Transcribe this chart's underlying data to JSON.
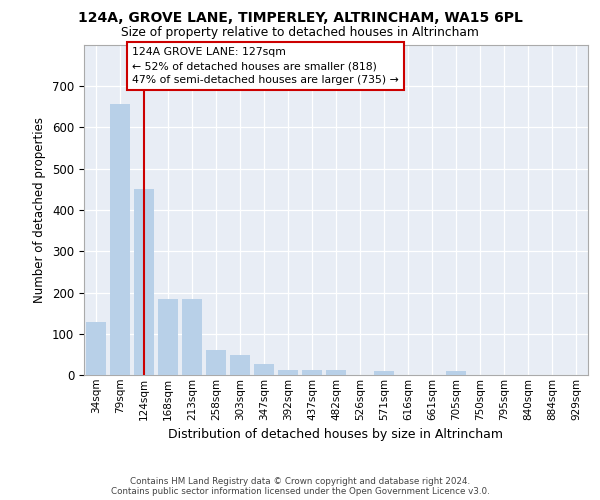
{
  "title1": "124A, GROVE LANE, TIMPERLEY, ALTRINCHAM, WA15 6PL",
  "title2": "Size of property relative to detached houses in Altrincham",
  "xlabel": "Distribution of detached houses by size in Altrincham",
  "ylabel": "Number of detached properties",
  "categories": [
    "34sqm",
    "79sqm",
    "124sqm",
    "168sqm",
    "213sqm",
    "258sqm",
    "303sqm",
    "347sqm",
    "392sqm",
    "437sqm",
    "482sqm",
    "526sqm",
    "571sqm",
    "616sqm",
    "661sqm",
    "705sqm",
    "750sqm",
    "795sqm",
    "840sqm",
    "884sqm",
    "929sqm"
  ],
  "values": [
    128,
    658,
    452,
    184,
    184,
    60,
    48,
    27,
    13,
    13,
    11,
    0,
    9,
    0,
    0,
    9,
    0,
    0,
    0,
    0,
    0
  ],
  "bar_color": "#b8d0e8",
  "highlight_bar_index": 2,
  "highlight_line_color": "#cc0000",
  "annotation_line1": "124A GROVE LANE: 127sqm",
  "annotation_line2": "← 52% of detached houses are smaller (818)",
  "annotation_line3": "47% of semi-detached houses are larger (735) →",
  "annotation_box_facecolor": "#ffffff",
  "annotation_box_edgecolor": "#cc0000",
  "ylim": [
    0,
    800
  ],
  "yticks": [
    0,
    100,
    200,
    300,
    400,
    500,
    600,
    700,
    800
  ],
  "plot_bg_color": "#e8edf5",
  "grid_color": "#ffffff",
  "footer_line1": "Contains HM Land Registry data © Crown copyright and database right 2024.",
  "footer_line2": "Contains public sector information licensed under the Open Government Licence v3.0."
}
